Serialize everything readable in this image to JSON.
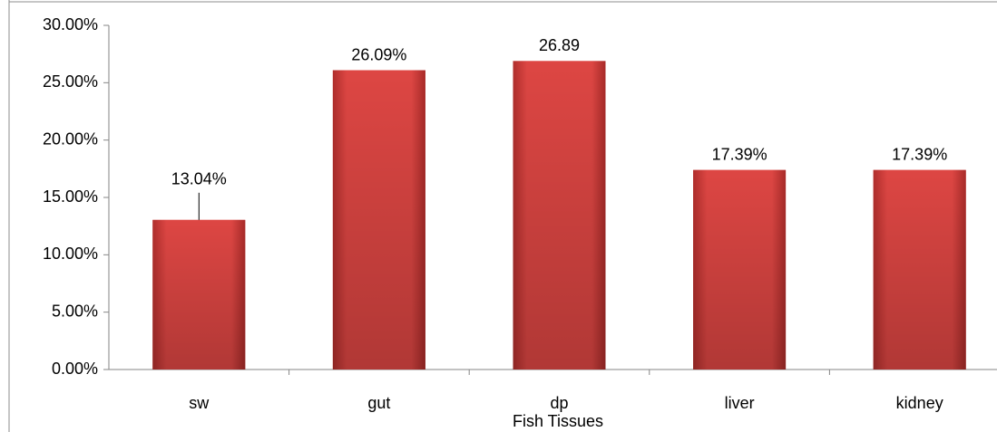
{
  "chart_data": {
    "type": "bar",
    "x_label": "Fish Tissues",
    "categories": [
      "sw",
      "gut",
      "dp",
      "liver",
      "kidney"
    ],
    "values": [
      13.04,
      26.09,
      26.89,
      17.39,
      17.39
    ],
    "value_labels": [
      "13.04%",
      "26.09%",
      "26.89",
      "17.39%",
      "17.39%"
    ],
    "color": "#d9423f",
    "ylim": [
      0,
      30
    ],
    "yticks": [
      {
        "value": 0,
        "label": "0.00%"
      },
      {
        "value": 5,
        "label": "5.00%"
      },
      {
        "value": 10,
        "label": "10.00%"
      },
      {
        "value": 15,
        "label": "15.00%"
      },
      {
        "value": 20,
        "label": "20.00%"
      },
      {
        "value": 25,
        "label": "25.00%"
      },
      {
        "value": 30,
        "label": "30.00%"
      }
    ],
    "grid": false
  }
}
